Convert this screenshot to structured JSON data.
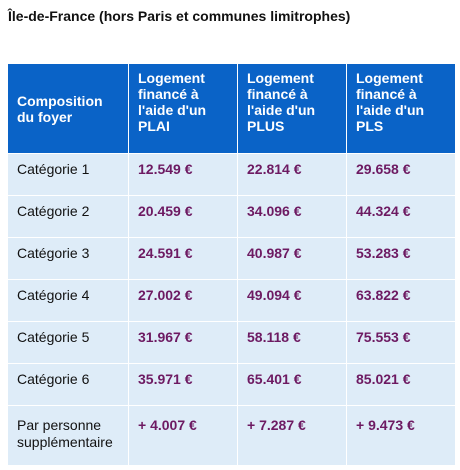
{
  "title": "Île-de-France (hors Paris et communes limitrophes)",
  "table": {
    "headers": [
      "Composition du foyer",
      "Logement financé à l'aide d'un PLAI",
      "Logement financé à l'aide d'un PLUS",
      "Logement financé à l'aide d'un PLS"
    ],
    "rows": [
      {
        "label": "Catégorie 1",
        "plai": "12.549 €",
        "plus": "22.814 €",
        "pls": "29.658 €"
      },
      {
        "label": "Catégorie 2",
        "plai": "20.459 €",
        "plus": "34.096 €",
        "pls": "44.324 €"
      },
      {
        "label": "Catégorie 3",
        "plai": "24.591 €",
        "plus": "40.987 €",
        "pls": "53.283 €"
      },
      {
        "label": "Catégorie 4",
        "plai": "27.002 €",
        "plus": "49.094 €",
        "pls": "63.822 €"
      },
      {
        "label": "Catégorie 5",
        "plai": "31.967 €",
        "plus": "58.118 €",
        "pls": "75.553 €"
      },
      {
        "label": "Catégorie 6",
        "plai": "35.971 €",
        "plus": "65.401 €",
        "pls": "85.021 €"
      },
      {
        "label": "Par personne supplémentaire",
        "plai": "+ 4.007 €",
        "plus": "+ 7.287 €",
        "pls": "+ 9.473 €"
      }
    ]
  },
  "colors": {
    "header_bg": "#0a63c7",
    "header_text": "#ffffff",
    "row_bg": "#deecf8",
    "value_text": "#6d1a62",
    "label_text": "#111111"
  }
}
